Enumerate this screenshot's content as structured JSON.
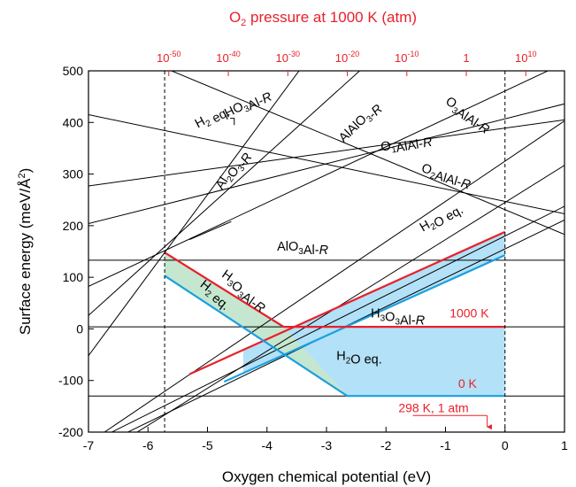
{
  "chart_data": {
    "type": "line",
    "xlabel": "Oxygen chemical potential (eV)",
    "ylabel": "Surface energy (meV/Å²)",
    "top_axis_label": "O₂ pressure at 1000 K (atm)",
    "xlim": [
      -7,
      1
    ],
    "ylim": [
      -200,
      500
    ],
    "x_ticks": [
      -7,
      -6,
      -5,
      -4,
      -3,
      -2,
      -1,
      0,
      1
    ],
    "y_ticks": [
      -200,
      -100,
      0,
      100,
      200,
      300,
      400,
      500
    ],
    "top_ticks": [
      {
        "label": "10",
        "exp": "-50",
        "x": -5.65
      },
      {
        "label": "10",
        "exp": "-40",
        "x": -4.65
      },
      {
        "label": "10",
        "exp": "-30",
        "x": -3.65
      },
      {
        "label": "10",
        "exp": "-20",
        "x": -2.65
      },
      {
        "label": "10",
        "exp": "-10",
        "x": -1.65
      },
      {
        "label": "1",
        "exp": "",
        "x": -0.65
      },
      {
        "label": "10",
        "exp": "10",
        "x": 0.35
      }
    ],
    "vertical_dashed_lines": [
      -5.72,
      0
    ],
    "lines": [
      {
        "label": "AlO3Al-R",
        "slope": 0,
        "intercept": 133
      },
      {
        "label": "H3O3Al-R",
        "slope": 0,
        "intercept": 4
      },
      {
        "label": "0 K",
        "slope": 0,
        "intercept": -130
      },
      {
        "label": "HO3Al-R",
        "slope": 52,
        "intercept": 188
      },
      {
        "label": "H2O eq.",
        "slope": 52,
        "intercept": 143
      },
      {
        "label": "H2 eq.",
        "slope": 50,
        "intercept": 438
      },
      {
        "label": "H3O3Al-R",
        "slope": 54.1,
        "intercept": 461
      },
      {
        "label": "H2 eq.",
        "slope": 50,
        "intercept": 390
      },
      {
        "label": "Al2O3-R",
        "slope": 156,
        "intercept": 1040
      },
      {
        "label": "AlAlO3-R",
        "slope": 104,
        "intercept": 754
      },
      {
        "label": "O3AlAl-R",
        "slope": -48,
        "intercept": 231
      },
      {
        "label": "O1AlAl-R",
        "slope": 16,
        "intercept": 389
      },
      {
        "label": "O2AlAl-R",
        "slope": -24,
        "intercept": 247
      },
      {
        "label": "",
        "slope": 29,
        "intercept": 407
      },
      {
        "label": "",
        "slope": 57.5,
        "intercept": 180
      },
      {
        "label": "",
        "slope": 56,
        "intercept": 155
      },
      {
        "label": "",
        "slope": 72,
        "intercept": 245
      },
      {
        "label": "",
        "slope": 78,
        "intercept": 325
      }
    ],
    "annotations": [
      {
        "text": "HO3Al-R",
        "x": -4.3,
        "y": 430
      },
      {
        "text": "H2 eq.",
        "x": -4.9,
        "y": 405
      },
      {
        "text": "AlAlO3-R",
        "x": -2.4,
        "y": 395
      },
      {
        "text": "O3AlAl-R",
        "x": -0.65,
        "y": 410
      },
      {
        "text": "O1AlAl-R",
        "x": -1.65,
        "y": 353
      },
      {
        "text": "O2AlAl-R",
        "x": -1.0,
        "y": 291
      },
      {
        "text": "Al2O3-R",
        "x": -4.55,
        "y": 305
      },
      {
        "text": "H2O eq.",
        "x": -1.05,
        "y": 210
      },
      {
        "text": "AlO3Al-R",
        "x": -3.4,
        "y": 152
      },
      {
        "text": "H3O3Al-R",
        "x": -4.4,
        "y": 72
      },
      {
        "text": "H2 eq.",
        "x": -4.9,
        "y": 62
      },
      {
        "text": "H3O3Al-R",
        "x": -1.8,
        "y": 22
      },
      {
        "text": "1000 K",
        "x": -0.6,
        "y": 22
      },
      {
        "text": "H2O eq.",
        "x": -2.45,
        "y": -60
      },
      {
        "text": "0 K",
        "x": -0.63,
        "y": -114
      },
      {
        "text": "298 K, 1 atm",
        "x": -1.2,
        "y": -161
      }
    ],
    "colors": {
      "red": "#e8202a",
      "blue": "#1aa0e0",
      "fill_blue": "#b3e1f7",
      "fill_green": "#c5e6cf"
    }
  }
}
